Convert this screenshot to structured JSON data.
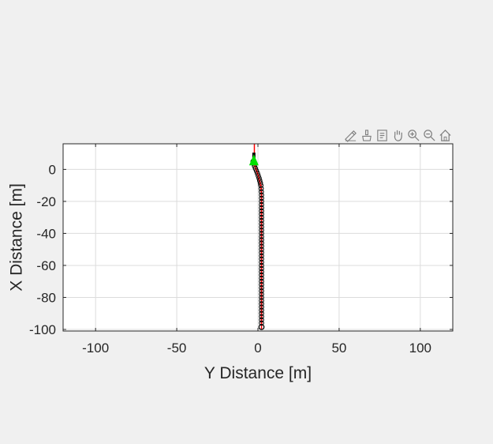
{
  "toolbar": {
    "icons": [
      "edit-plot-icon",
      "brush-icon",
      "data-tips-icon",
      "pan-hand-icon",
      "zoom-in-icon",
      "zoom-out-icon",
      "home-icon"
    ]
  },
  "colors": {
    "background": "#f0f0f0",
    "axes_face": "#ffffff",
    "grid": "#dcdcdc",
    "axis_line": "#262626",
    "marker_edge": "#000000",
    "path_line": "#ff0000",
    "vehicle": "#00e000",
    "toolbar_icon": "#7f7f7f"
  },
  "chart_data": {
    "type": "scatter",
    "title": "",
    "xlabel": "Y Distance [m]",
    "ylabel": "X Distance [m]",
    "xlim": [
      -120,
      120
    ],
    "ylim": [
      -101,
      16
    ],
    "xticks": [
      -100,
      -50,
      0,
      50,
      100
    ],
    "yticks": [
      0,
      -20,
      -40,
      -60,
      -80,
      -100
    ],
    "xtick_labels": [
      "-100",
      "-50",
      "0",
      "50",
      "100"
    ],
    "ytick_labels": [
      "0",
      "-20",
      "-40",
      "-60",
      "-80",
      "-100"
    ],
    "grid": true,
    "series": [
      {
        "marker": "circle",
        "y_distance": [
          -3.0,
          -2.6,
          -2.1,
          -1.5,
          -0.9,
          -0.3,
          0.2,
          0.7,
          1.1,
          1.5,
          1.8,
          2.0,
          2.1,
          2.2,
          2.2,
          2.2,
          2.2,
          2.2,
          2.2,
          2.2,
          2.2,
          2.2,
          2.2,
          2.2,
          2.2,
          2.2,
          2.2,
          2.2,
          2.2,
          2.2,
          2.2,
          2.2,
          2.2,
          2.2,
          2.2,
          2.2,
          2.2,
          2.2,
          2.2,
          2.2,
          2.2,
          2.2,
          2.2,
          2.2,
          2.2,
          2.2,
          2.2,
          2.2,
          2.2,
          2.2,
          2.2,
          2.2,
          2.2,
          2.2
        ],
        "x_distance": [
          5.0,
          3.5,
          2.0,
          0.5,
          -1.0,
          -2.5,
          -4.0,
          -5.5,
          -7.0,
          -8.5,
          -10.0,
          -12.0,
          -14.0,
          -16.0,
          -18.0,
          -20.0,
          -22.0,
          -24.0,
          -26.0,
          -28.0,
          -30.0,
          -32.0,
          -34.0,
          -36.0,
          -38.0,
          -40.0,
          -42.0,
          -44.0,
          -46.0,
          -48.0,
          -50.0,
          -52.0,
          -54.0,
          -56.0,
          -58.0,
          -60.0,
          -62.0,
          -64.0,
          -66.0,
          -68.0,
          -70.0,
          -72.0,
          -74.0,
          -76.0,
          -78.0,
          -80.0,
          -82.0,
          -84.0,
          -86.0,
          -88.0,
          -90.0,
          -92.0,
          -94.0,
          -96.0
        ]
      }
    ],
    "reference_path": {
      "y_distance": [
        -2.2,
        -2.2,
        -1.6,
        0.2,
        1.6,
        2.2,
        2.2
      ],
      "x_distance": [
        16,
        7,
        2,
        -4,
        -10,
        -16,
        -100
      ]
    },
    "vehicle_position": {
      "y_distance": -2.5,
      "x_distance": 5.5
    },
    "end_marker": {
      "y_distance": 2.2,
      "x_distance": -98.5
    }
  }
}
